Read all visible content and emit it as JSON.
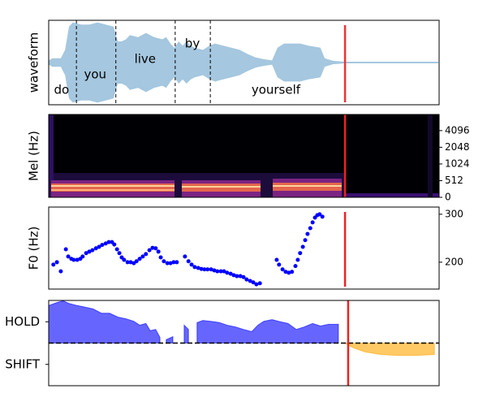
{
  "chart_data": [
    {
      "type": "waveform",
      "ylabel": "waveform",
      "xlim": [
        0,
        100
      ],
      "ylim": [
        -1,
        1
      ],
      "color": "#a5c7df",
      "x": [
        0,
        1.0,
        3.1,
        4.2,
        5.2,
        6.2,
        8.3,
        10.4,
        12.5,
        14.6,
        16.6,
        17.7,
        18.7,
        19.8,
        20.8,
        22.9,
        24.9,
        27.0,
        29.1,
        30.1,
        31.2,
        32.2,
        33.3,
        34.3,
        35.3,
        36.4,
        37.4,
        39.5,
        41.2,
        42.6,
        44.7,
        46.8,
        48.9,
        51.0,
        53.0,
        55.1,
        57.2,
        58.6,
        60.3,
        62.4,
        64.4,
        66.5,
        69.6,
        70.7,
        72.8,
        75.9,
        99.8
      ],
      "values": [
        0.05,
        0.1,
        0.1,
        0.3,
        0.85,
        0.95,
        0.9,
        0.9,
        0.95,
        0.9,
        0.85,
        0.5,
        0.5,
        0.55,
        0.65,
        0.6,
        0.7,
        0.6,
        0.55,
        0.6,
        0.45,
        0.35,
        0.5,
        0.4,
        0.5,
        0.4,
        0.35,
        0.3,
        0.4,
        0.45,
        0.4,
        0.35,
        0.3,
        0.2,
        0.12,
        0.08,
        0.05,
        0.35,
        0.45,
        0.45,
        0.45,
        0.4,
        0.35,
        0.1,
        0.04,
        0.02,
        0.02
      ],
      "words": [
        {
          "text": "do",
          "x": 3.3,
          "y": -0.65
        },
        {
          "text": "you",
          "x": 11.9,
          "y": -0.29
        },
        {
          "text": "live",
          "x": 24.7,
          "y": 0.08
        },
        {
          "text": "by",
          "x": 36.8,
          "y": 0.44
        },
        {
          "text": "yourself",
          "x": 58.2,
          "y": -0.65
        }
      ],
      "boundaries": [
        7.1,
        17.2,
        32.4,
        41.4
      ],
      "cursor": 75.9,
      "cursor_color": "#ee3333"
    },
    {
      "type": "heatmap",
      "ylabel": "Mel (Hz)",
      "xlim": [
        0,
        100
      ],
      "ylim": [
        0,
        8000
      ],
      "yscale": "symlog",
      "linthresh": 512,
      "yticks": [
        0,
        512,
        1024,
        2048,
        4096
      ],
      "ytick_position": "right",
      "cursor": 75.9,
      "cursor_color": "#ee2222"
    },
    {
      "type": "scatter",
      "ylabel": "F0 (Hz)",
      "xlim": [
        0,
        100
      ],
      "ylim": [
        144,
        315
      ],
      "yticks": [
        200,
        300
      ],
      "ytick_position": "right",
      "color": "#0000ff",
      "x": [
        1.2,
        2.1,
        3.1,
        4.4,
        5.0,
        5.8,
        6.4,
        7.3,
        8.1,
        8.7,
        9.6,
        10.4,
        11.2,
        12.1,
        12.9,
        13.7,
        14.6,
        15.4,
        16.2,
        16.8,
        17.5,
        18.1,
        18.7,
        19.3,
        20.2,
        21.0,
        21.8,
        22.5,
        23.3,
        24.1,
        24.9,
        25.8,
        26.6,
        27.4,
        28.1,
        28.7,
        29.5,
        30.4,
        31.2,
        32.0,
        32.8,
        34.9,
        35.8,
        36.6,
        37.4,
        38.3,
        39.1,
        39.9,
        40.7,
        41.6,
        42.4,
        43.2,
        44.1,
        44.9,
        45.7,
        46.6,
        47.4,
        48.2,
        49.1,
        49.9,
        50.7,
        51.6,
        52.4,
        53.2,
        54.1,
        58.4,
        59.0,
        59.9,
        60.7,
        61.5,
        62.3,
        63.2,
        63.8,
        64.4,
        65.1,
        65.7,
        66.3,
        67.0,
        67.6,
        68.2,
        68.8,
        69.4,
        70.1
      ],
      "y": [
        195,
        200,
        181,
        227,
        212,
        207,
        205,
        205,
        207,
        212,
        219,
        222,
        225,
        229,
        232,
        236,
        239,
        242,
        242,
        237,
        227,
        219,
        210,
        205,
        200,
        200,
        198,
        202,
        207,
        212,
        217,
        225,
        230,
        229,
        222,
        210,
        202,
        198,
        198,
        200,
        200,
        212,
        202,
        195,
        190,
        188,
        186,
        185,
        185,
        185,
        183,
        181,
        181,
        181,
        178,
        176,
        173,
        171,
        171,
        169,
        164,
        161,
        158,
        154,
        156,
        205,
        195,
        185,
        180,
        178,
        180,
        192,
        205,
        219,
        232,
        246,
        259,
        271,
        283,
        293,
        298,
        300,
        295
      ],
      "cursor": 75.9,
      "cursor_color": "#ee2222"
    },
    {
      "type": "area",
      "xlim": [
        0,
        100
      ],
      "ylim": [
        -1,
        1
      ],
      "yticks": [
        {
          "value": 0.5,
          "label": "HOLD"
        },
        {
          "value": -0.5,
          "label": "SHIFT"
        }
      ],
      "ytick_position": "left",
      "hline": 0,
      "series": [
        {
          "color": "#0000ff",
          "alpha": 0.6,
          "x": [
            0,
            2.1,
            3.7,
            5.2,
            7.3,
            9.4,
            11.4,
            13.5,
            15.6,
            17.7,
            19.8,
            21.8,
            23.3,
            24.9,
            26.0,
            27.4,
            28.5,
            29.5,
            30.1,
            31.8,
            32.8,
            34.7,
            35.8,
            37.4,
            38.0,
            39.5,
            41.6,
            43.7,
            45.7,
            47.8,
            49.9,
            52.0,
            53.6,
            55.1,
            57.2,
            59.3,
            61.3,
            63.4,
            65.5,
            67.6,
            69.6,
            71.7,
            74.2
          ],
          "values": [
            0.88,
            0.95,
            0.99,
            0.93,
            0.88,
            0.84,
            0.8,
            0.7,
            0.7,
            0.61,
            0.57,
            0.51,
            0.42,
            0.46,
            0.29,
            0.32,
            0.13,
            null,
            0.08,
            0.15,
            null,
            0.42,
            0.32,
            null,
            0.48,
            0.53,
            0.51,
            0.48,
            0.42,
            0.38,
            0.32,
            0.27,
            0.42,
            0.51,
            0.55,
            0.5,
            0.46,
            0.32,
            0.38,
            0.46,
            0.4,
            0.44,
            0.44
          ]
        },
        {
          "color": "#ffa500",
          "alpha": 0.6,
          "x": [
            75.9,
            78.0,
            81.1,
            85.2,
            89.4,
            93.6,
            98.8
          ],
          "values": [
            0,
            -0.11,
            -0.21,
            -0.27,
            -0.29,
            -0.29,
            -0.27
          ]
        }
      ],
      "cursor": 76.7,
      "cursor_color": "#ee2222"
    }
  ]
}
